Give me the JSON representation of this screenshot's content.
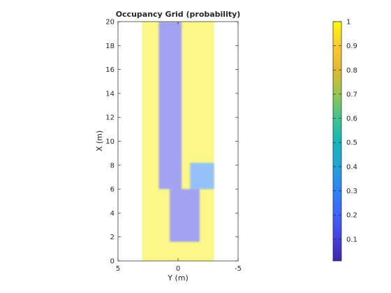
{
  "chart_data": {
    "type": "heatmap",
    "title": "Occupancy Grid (probability)",
    "xlabel": "Y (m)",
    "ylabel": "X (m)",
    "xlim": [
      5,
      -5
    ],
    "ylim": [
      0,
      20
    ],
    "x_reversed": true,
    "x_ticks": [
      "5",
      "0",
      "-5"
    ],
    "x_tick_values": [
      5,
      0,
      -5
    ],
    "y_ticks": [
      "0",
      "2",
      "4",
      "6",
      "8",
      "10",
      "12",
      "14",
      "16",
      "18",
      "20"
    ],
    "y_tick_values": [
      0,
      2,
      4,
      6,
      8,
      10,
      12,
      14,
      16,
      18,
      20
    ],
    "grid": false,
    "data_extent": {
      "y_range": [
        3,
        -3
      ],
      "x_range": [
        1.6,
        20
      ]
    },
    "free_space_cells": [
      {
        "x": [
          1.6,
          6.0
        ],
        "y": [
          0.7,
          -1.8
        ],
        "p": 0.12
      },
      {
        "x": [
          6.0,
          20.0
        ],
        "y": [
          1.6,
          -0.3
        ],
        "p": 0.12
      },
      {
        "x": [
          6.0,
          8.2
        ],
        "y": [
          -1.0,
          -3.0
        ],
        "p": 0.3
      }
    ],
    "occupied_probability": 0.98,
    "colorbar": {
      "colormap": "parula",
      "range": [
        0.01,
        1
      ],
      "ticks": [
        "0.1",
        "0.2",
        "0.3",
        "0.4",
        "0.5",
        "0.6",
        "0.7",
        "0.8",
        "0.9",
        "1"
      ],
      "tick_values": [
        0.1,
        0.2,
        0.3,
        0.4,
        0.5,
        0.6,
        0.7,
        0.8,
        0.9,
        1
      ]
    }
  }
}
